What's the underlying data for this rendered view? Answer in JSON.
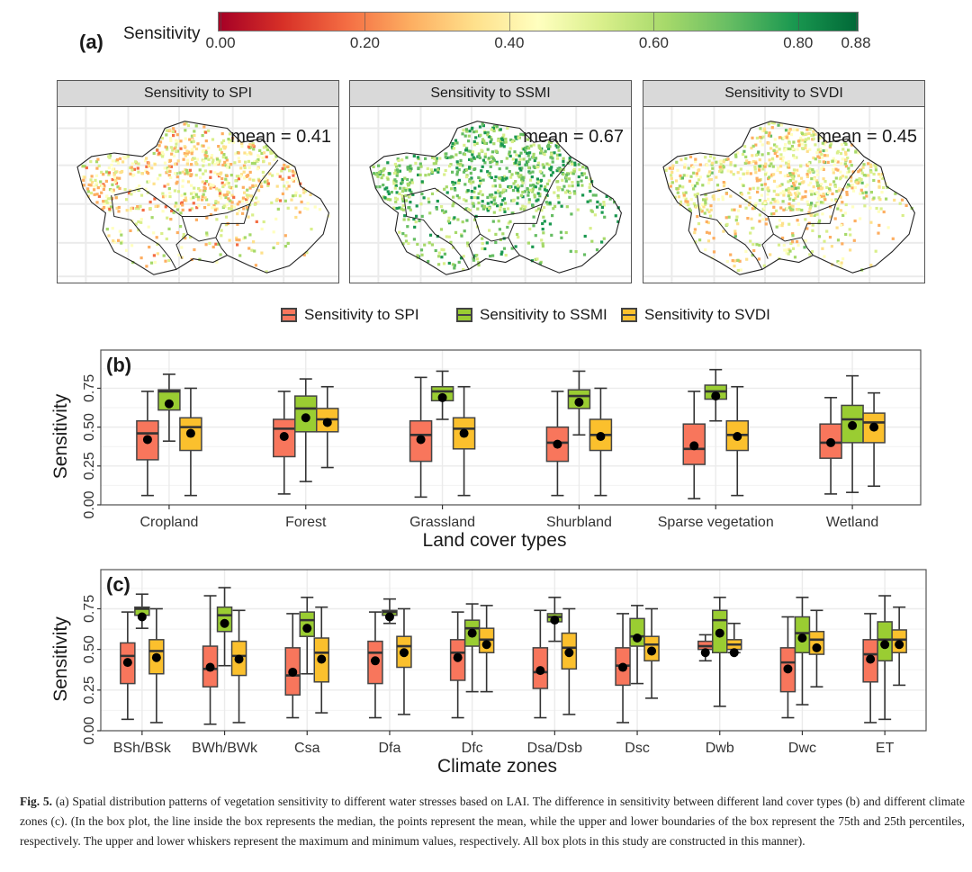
{
  "panel_a": {
    "tag": "(a)",
    "colorbar": {
      "title": "Sensitivity",
      "range": [
        0.0,
        0.88
      ],
      "ticks": [
        "0.00",
        "0.20",
        "0.40",
        "0.60",
        "0.80",
        "0.88"
      ],
      "tick_values": [
        0.0,
        0.2,
        0.4,
        0.6,
        0.8,
        0.88
      ],
      "colors": [
        "#a50026",
        "#d73027",
        "#f46d43",
        "#fdae61",
        "#fee08b",
        "#ffffbf",
        "#d9ef8b",
        "#a6d96a",
        "#66bd63",
        "#1a9850",
        "#006837"
      ]
    },
    "maps": [
      {
        "title": "Sensitivity to SPI",
        "mean_label": "mean = 0.41",
        "mean": 0.41
      },
      {
        "title": "Sensitivity to SSMI",
        "mean_label": "mean = 0.67",
        "mean": 0.67
      },
      {
        "title": "Sensitivity to SVDI",
        "mean_label": "mean = 0.45",
        "mean": 0.45
      }
    ]
  },
  "legend": {
    "items": [
      {
        "label": "Sensitivity to SPI",
        "color": "#f8765c"
      },
      {
        "label": "Sensitivity to SSMI",
        "color": "#9acd32"
      },
      {
        "label": "Sensitivity to SVDI",
        "color": "#fbc02d"
      }
    ]
  },
  "chart_data": [
    {
      "type": "boxplot",
      "tag": "(b)",
      "xlabel": "Land cover types",
      "ylabel": "Sensitivity",
      "ylim": [
        0.0,
        0.88
      ],
      "yticks": [
        "0.00",
        "0.25",
        "0.50",
        "0.75"
      ],
      "ytick_values": [
        0.0,
        0.25,
        0.5,
        0.75
      ],
      "grid": true,
      "categories": [
        "Cropland",
        "Forest",
        "Grassland",
        "Shurbland",
        "Sparse vegetation",
        "Wetland"
      ],
      "series": [
        {
          "name": "Sensitivity to SPI",
          "color": "#f8765c",
          "values": [
            {
              "min": 0.06,
              "q1": 0.29,
              "median": 0.46,
              "q3": 0.54,
              "max": 0.73,
              "mean": 0.42
            },
            {
              "min": 0.07,
              "q1": 0.31,
              "median": 0.49,
              "q3": 0.55,
              "max": 0.73,
              "mean": 0.44
            },
            {
              "min": 0.05,
              "q1": 0.28,
              "median": 0.45,
              "q3": 0.54,
              "max": 0.82,
              "mean": 0.42
            },
            {
              "min": 0.06,
              "q1": 0.28,
              "median": 0.4,
              "q3": 0.5,
              "max": 0.73,
              "mean": 0.39
            },
            {
              "min": 0.04,
              "q1": 0.26,
              "median": 0.36,
              "q3": 0.52,
              "max": 0.73,
              "mean": 0.38
            },
            {
              "min": 0.07,
              "q1": 0.3,
              "median": 0.4,
              "q3": 0.52,
              "max": 0.69,
              "mean": 0.4
            }
          ]
        },
        {
          "name": "Sensitivity to SSMI",
          "color": "#9acd32",
          "values": [
            {
              "min": 0.41,
              "q1": 0.61,
              "median": 0.73,
              "q3": 0.74,
              "max": 0.84,
              "mean": 0.65
            },
            {
              "min": 0.15,
              "q1": 0.47,
              "median": 0.62,
              "q3": 0.7,
              "max": 0.81,
              "mean": 0.56
            },
            {
              "min": 0.55,
              "q1": 0.67,
              "median": 0.73,
              "q3": 0.76,
              "max": 0.86,
              "mean": 0.69
            },
            {
              "min": 0.45,
              "q1": 0.62,
              "median": 0.7,
              "q3": 0.74,
              "max": 0.86,
              "mean": 0.66
            },
            {
              "min": 0.54,
              "q1": 0.68,
              "median": 0.73,
              "q3": 0.77,
              "max": 0.87,
              "mean": 0.7
            },
            {
              "min": 0.08,
              "q1": 0.4,
              "median": 0.55,
              "q3": 0.64,
              "max": 0.83,
              "mean": 0.51
            }
          ]
        },
        {
          "name": "Sensitivity to SVDI",
          "color": "#fbc02d",
          "values": [
            {
              "min": 0.06,
              "q1": 0.35,
              "median": 0.5,
              "q3": 0.56,
              "max": 0.75,
              "mean": 0.46
            },
            {
              "min": 0.24,
              "q1": 0.47,
              "median": 0.55,
              "q3": 0.62,
              "max": 0.76,
              "mean": 0.53
            },
            {
              "min": 0.06,
              "q1": 0.36,
              "median": 0.49,
              "q3": 0.56,
              "max": 0.76,
              "mean": 0.46
            },
            {
              "min": 0.06,
              "q1": 0.35,
              "median": 0.45,
              "q3": 0.55,
              "max": 0.75,
              "mean": 0.44
            },
            {
              "min": 0.06,
              "q1": 0.35,
              "median": 0.45,
              "q3": 0.54,
              "max": 0.76,
              "mean": 0.44
            },
            {
              "min": 0.12,
              "q1": 0.4,
              "median": 0.53,
              "q3": 0.59,
              "max": 0.72,
              "mean": 0.5
            }
          ]
        }
      ]
    },
    {
      "type": "boxplot",
      "tag": "(c)",
      "xlabel": "Climate zones",
      "ylabel": "Sensitivity",
      "ylim": [
        0.0,
        0.88
      ],
      "yticks": [
        "0.00",
        "0.25",
        "0.50",
        "0.75"
      ],
      "ytick_values": [
        0.0,
        0.25,
        0.5,
        0.75
      ],
      "grid": true,
      "categories": [
        "BSh/BSk",
        "BWh/BWk",
        "Csa",
        "Dfa",
        "Dfc",
        "Dsa/Dsb",
        "Dsc",
        "Dwb",
        "Dwc",
        "ET"
      ],
      "series": [
        {
          "name": "Sensitivity to SPI",
          "color": "#f8765c",
          "values": [
            {
              "min": 0.07,
              "q1": 0.29,
              "median": 0.46,
              "q3": 0.54,
              "max": 0.73,
              "mean": 0.42
            },
            {
              "min": 0.04,
              "q1": 0.27,
              "median": 0.38,
              "q3": 0.52,
              "max": 0.83,
              "mean": 0.39
            },
            {
              "min": 0.08,
              "q1": 0.22,
              "median": 0.34,
              "q3": 0.51,
              "max": 0.72,
              "mean": 0.36
            },
            {
              "min": 0.08,
              "q1": 0.29,
              "median": 0.48,
              "q3": 0.55,
              "max": 0.73,
              "mean": 0.43
            },
            {
              "min": 0.08,
              "q1": 0.31,
              "median": 0.48,
              "q3": 0.56,
              "max": 0.73,
              "mean": 0.45
            },
            {
              "min": 0.08,
              "q1": 0.26,
              "median": 0.36,
              "q3": 0.51,
              "max": 0.74,
              "mean": 0.37
            },
            {
              "min": 0.05,
              "q1": 0.28,
              "median": 0.4,
              "q3": 0.51,
              "max": 0.72,
              "mean": 0.39
            },
            {
              "min": 0.43,
              "q1": 0.5,
              "median": 0.52,
              "q3": 0.55,
              "max": 0.59,
              "mean": 0.48
            },
            {
              "min": 0.08,
              "q1": 0.24,
              "median": 0.42,
              "q3": 0.51,
              "max": 0.7,
              "mean": 0.38
            },
            {
              "min": 0.05,
              "q1": 0.3,
              "median": 0.47,
              "q3": 0.56,
              "max": 0.72,
              "mean": 0.44
            }
          ]
        },
        {
          "name": "Sensitivity to SSMI",
          "color": "#9acd32",
          "values": [
            {
              "min": 0.63,
              "q1": 0.71,
              "median": 0.75,
              "q3": 0.76,
              "max": 0.84,
              "mean": 0.7
            },
            {
              "min": 0.4,
              "q1": 0.61,
              "median": 0.71,
              "q3": 0.76,
              "max": 0.88,
              "mean": 0.66
            },
            {
              "min": 0.35,
              "q1": 0.58,
              "median": 0.68,
              "q3": 0.73,
              "max": 0.82,
              "mean": 0.63
            },
            {
              "min": 0.66,
              "q1": 0.71,
              "median": 0.73,
              "q3": 0.74,
              "max": 0.81,
              "mean": 0.7
            },
            {
              "min": 0.24,
              "q1": 0.52,
              "median": 0.63,
              "q3": 0.68,
              "max": 0.78,
              "mean": 0.6
            },
            {
              "min": 0.55,
              "q1": 0.67,
              "median": 0.7,
              "q3": 0.72,
              "max": 0.82,
              "mean": 0.68
            },
            {
              "min": 0.29,
              "q1": 0.52,
              "median": 0.58,
              "q3": 0.69,
              "max": 0.77,
              "mean": 0.57
            },
            {
              "min": 0.15,
              "q1": 0.48,
              "median": 0.68,
              "q3": 0.74,
              "max": 0.82,
              "mean": 0.6
            },
            {
              "min": 0.16,
              "q1": 0.48,
              "median": 0.6,
              "q3": 0.7,
              "max": 0.82,
              "mean": 0.57
            },
            {
              "min": 0.07,
              "q1": 0.43,
              "median": 0.56,
              "q3": 0.67,
              "max": 0.83,
              "mean": 0.53
            }
          ]
        },
        {
          "name": "Sensitivity to SVDI",
          "color": "#fbc02d",
          "values": [
            {
              "min": 0.05,
              "q1": 0.35,
              "median": 0.49,
              "q3": 0.56,
              "max": 0.75,
              "mean": 0.45
            },
            {
              "min": 0.05,
              "q1": 0.34,
              "median": 0.46,
              "q3": 0.55,
              "max": 0.74,
              "mean": 0.44
            },
            {
              "min": 0.11,
              "q1": 0.3,
              "median": 0.48,
              "q3": 0.57,
              "max": 0.76,
              "mean": 0.44
            },
            {
              "min": 0.1,
              "q1": 0.39,
              "median": 0.52,
              "q3": 0.58,
              "max": 0.75,
              "mean": 0.48
            },
            {
              "min": 0.24,
              "q1": 0.48,
              "median": 0.56,
              "q3": 0.63,
              "max": 0.77,
              "mean": 0.53
            },
            {
              "min": 0.1,
              "q1": 0.38,
              "median": 0.51,
              "q3": 0.6,
              "max": 0.75,
              "mean": 0.48
            },
            {
              "min": 0.2,
              "q1": 0.43,
              "median": 0.53,
              "q3": 0.58,
              "max": 0.75,
              "mean": 0.49
            },
            {
              "min": 0.48,
              "q1": 0.5,
              "median": 0.53,
              "q3": 0.56,
              "max": 0.66,
              "mean": 0.48
            },
            {
              "min": 0.27,
              "q1": 0.47,
              "median": 0.56,
              "q3": 0.61,
              "max": 0.74,
              "mean": 0.51
            },
            {
              "min": 0.28,
              "q1": 0.48,
              "median": 0.56,
              "q3": 0.62,
              "max": 0.76,
              "mean": 0.53
            }
          ]
        }
      ]
    }
  ],
  "caption": {
    "label": "Fig. 5.",
    "text": "(a) Spatial distribution patterns of vegetation sensitivity to different water stresses based on LAI. The difference in sensitivity between different land cover types (b) and different climate zones (c). (In the box plot, the line inside the box represents the median, the points represent the mean, while the upper and lower boundaries of the box represent the 75th and 25th percentiles, respectively. The upper and lower whiskers represent the maximum and minimum values, respectively. All box plots in this study are constructed in this manner)."
  }
}
